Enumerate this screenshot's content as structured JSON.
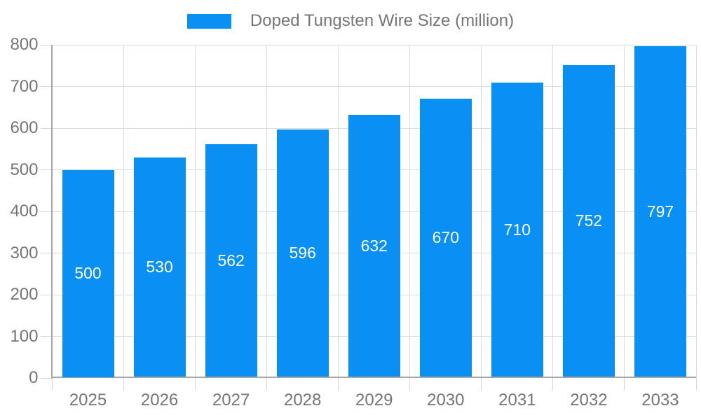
{
  "legend": {
    "label": "Doped Tungsten Wire Size (million)"
  },
  "colors": {
    "bar": "#0a8ff2",
    "grid": "#dcdcdc",
    "axis": "#a6a6a6",
    "tick": "#d6d6d6",
    "text": "#757575",
    "value_label": "#ffffff",
    "background": "#ffffff"
  },
  "chart_data": {
    "type": "bar",
    "title": "",
    "series_name": "Doped Tungsten Wire Size (million)",
    "categories": [
      "2025",
      "2026",
      "2027",
      "2028",
      "2029",
      "2030",
      "2031",
      "2032",
      "2033"
    ],
    "values": [
      500,
      530,
      562,
      596,
      632,
      670,
      710,
      752,
      797
    ],
    "xlabel": "",
    "ylabel": "",
    "ylim": [
      0,
      800
    ],
    "yticks": [
      0,
      100,
      200,
      300,
      400,
      500,
      600,
      700,
      800
    ],
    "grid": true,
    "legend_position": "top",
    "value_labels": "inside-middle"
  }
}
